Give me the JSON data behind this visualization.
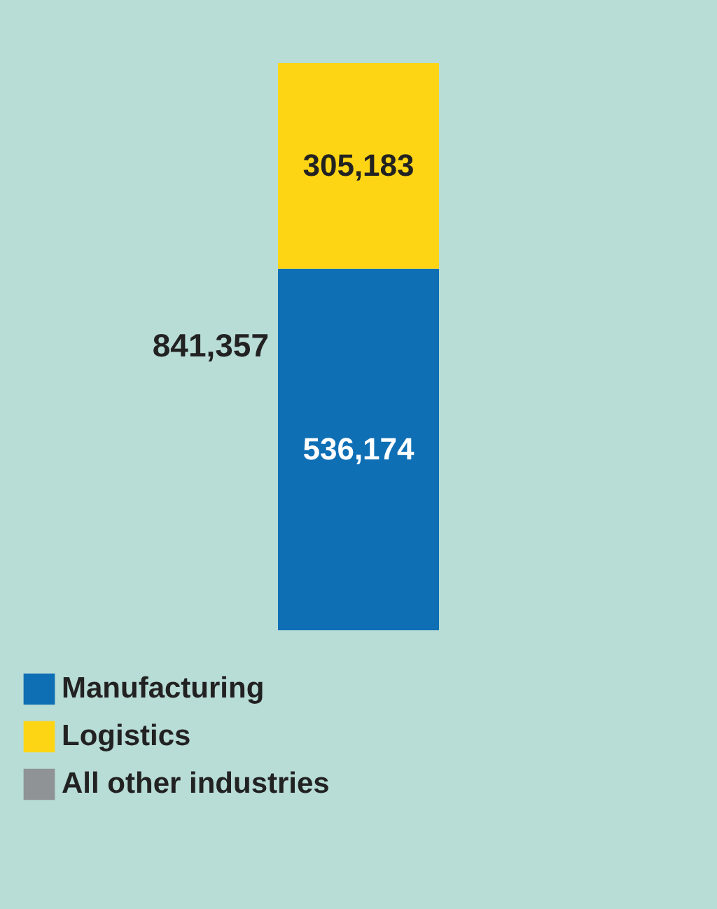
{
  "chart_data": {
    "type": "bar",
    "categories": [
      null
    ],
    "stacked": true,
    "totals": [
      "841,357"
    ],
    "legend": "bottom",
    "series": [
      {
        "name": "Manufacturing",
        "color": "#0e6fb5",
        "values": [
          536174
        ],
        "value_labels": [
          "536,174"
        ]
      },
      {
        "name": "Logistics",
        "color": "#fdd514",
        "values": [
          305183
        ],
        "value_labels": [
          "305,183"
        ]
      },
      {
        "name": "All other industries",
        "color": "#8f9396",
        "values": [
          null
        ]
      }
    ]
  }
}
